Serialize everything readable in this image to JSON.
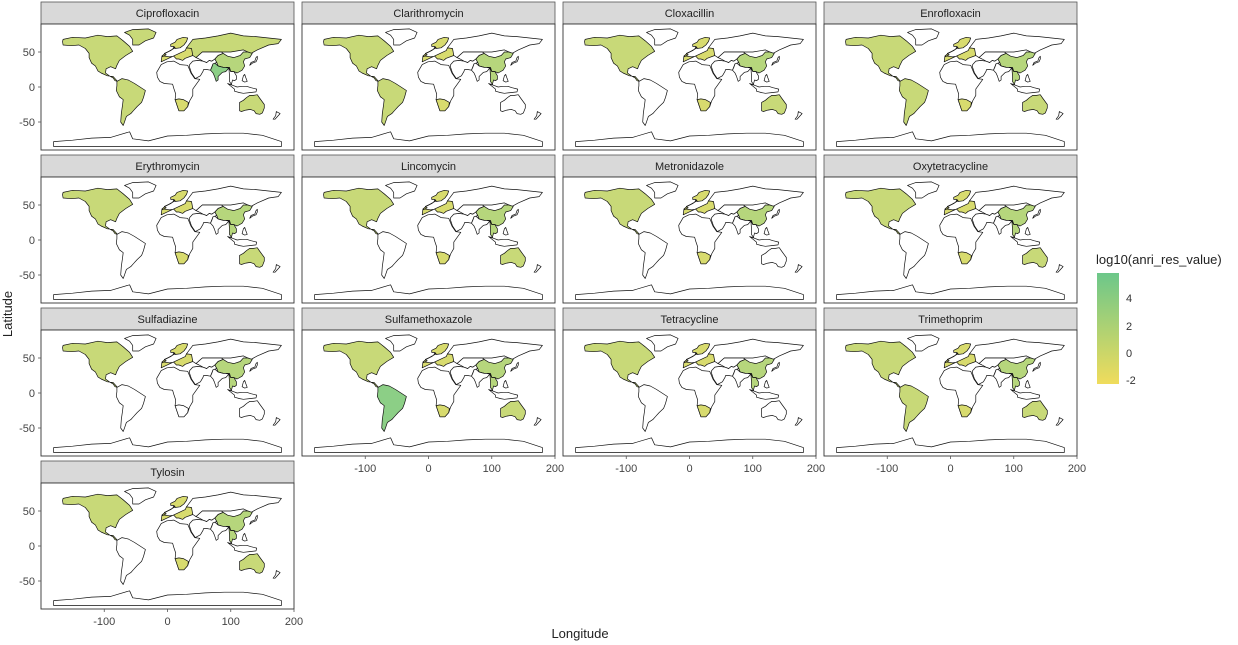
{
  "figure": {
    "xlabel": "Longitude",
    "ylabel": "Latitude",
    "x_ticks": [
      "-100",
      "0",
      "100",
      "200"
    ],
    "y_ticks": [
      "50",
      "0",
      "-50"
    ],
    "ncol": 4
  },
  "legend": {
    "title": "log10(anri_res_value)",
    "labels": [
      "4",
      "2",
      "0",
      "-2"
    ],
    "color_low": "#f0dc5c",
    "color_high": "#6cc78a"
  },
  "colors": {
    "strip_fill": "#d9d9d9",
    "land_empty": "#ffffff",
    "border": "#111111",
    "fill_default": "#c8d978",
    "fill_light": "#d8db6e",
    "fill_mid": "#b6d67c",
    "fill_high": "#8ccf86"
  },
  "chart_data": {
    "type": "choropleth-facets",
    "xlabel": "Longitude",
    "ylabel": "Latitude",
    "xlim": [
      -200,
      200
    ],
    "ylim": [
      -90,
      90
    ],
    "legend_title": "log10(anri_res_value)",
    "legend_range": [
      -2,
      5.5
    ],
    "panels": [
      {
        "name": "Ciprofloxacin",
        "regions": [
          "north_america",
          "greenland",
          "south_america",
          "europe",
          "russia",
          "china",
          "india",
          "southern_africa",
          "australia"
        ],
        "highlight": [
          "india"
        ]
      },
      {
        "name": "Clarithromycin",
        "regions": [
          "north_america",
          "south_america",
          "europe",
          "china",
          "southeast_asia",
          "southern_africa"
        ]
      },
      {
        "name": "Cloxacillin",
        "regions": [
          "north_america",
          "europe",
          "china",
          "southern_africa",
          "australia"
        ]
      },
      {
        "name": "Enrofloxacin",
        "regions": [
          "north_america",
          "south_america",
          "europe",
          "china",
          "southeast_asia",
          "southern_africa",
          "australia"
        ]
      },
      {
        "name": "Erythromycin",
        "regions": [
          "north_america",
          "europe",
          "china",
          "southeast_asia",
          "southern_africa",
          "australia"
        ]
      },
      {
        "name": "Lincomycin",
        "regions": [
          "north_america",
          "europe",
          "china",
          "southeast_asia",
          "southern_africa",
          "australia"
        ]
      },
      {
        "name": "Metronidazole",
        "regions": [
          "north_america",
          "europe",
          "china",
          "southern_africa"
        ]
      },
      {
        "name": "Oxytetracycline",
        "regions": [
          "north_america",
          "europe",
          "china",
          "southeast_asia",
          "southern_africa",
          "australia"
        ]
      },
      {
        "name": "Sulfadiazine",
        "regions": [
          "north_america",
          "europe",
          "china",
          "southeast_asia"
        ]
      },
      {
        "name": "Sulfamethoxazole",
        "regions": [
          "north_america",
          "south_america",
          "europe",
          "china",
          "southeast_asia",
          "southern_africa",
          "australia"
        ],
        "highlight": [
          "south_america"
        ]
      },
      {
        "name": "Tetracycline",
        "regions": [
          "north_america",
          "europe",
          "china",
          "southeast_asia",
          "southern_africa"
        ]
      },
      {
        "name": "Trimethoprim",
        "regions": [
          "north_america",
          "south_america",
          "europe",
          "china",
          "southeast_asia",
          "southern_africa",
          "australia"
        ]
      },
      {
        "name": "Tylosin",
        "regions": [
          "north_america",
          "europe",
          "china",
          "southeast_asia",
          "southern_africa",
          "australia"
        ]
      }
    ]
  }
}
